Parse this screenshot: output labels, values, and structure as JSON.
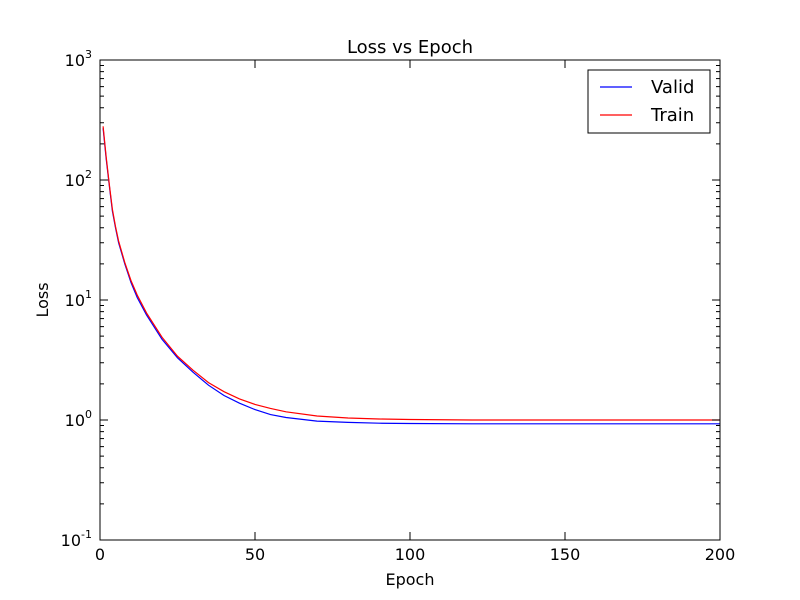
{
  "chart_data": {
    "type": "line",
    "title": "Loss vs Epoch",
    "xlabel": "Epoch",
    "ylabel": "Loss",
    "xlim": [
      0,
      200
    ],
    "ylim": [
      0.1,
      1000
    ],
    "yscale": "log",
    "x_ticks": [
      0,
      50,
      100,
      150,
      200
    ],
    "x_tick_labels": [
      "0",
      "50",
      "100",
      "150",
      "200"
    ],
    "y_ticks": [
      {
        "value": 0.1,
        "base": "10",
        "exp": "-1"
      },
      {
        "value": 1,
        "base": "10",
        "exp": "0"
      },
      {
        "value": 10,
        "base": "10",
        "exp": "1"
      },
      {
        "value": 100,
        "base": "10",
        "exp": "2"
      },
      {
        "value": 1000,
        "base": "10",
        "exp": "3"
      }
    ],
    "legend_position": "top-right",
    "series": [
      {
        "name": "Valid",
        "color": "#0000ff",
        "x": [
          1,
          2,
          3,
          4,
          5,
          6,
          8,
          10,
          12,
          15,
          20,
          25,
          30,
          35,
          40,
          45,
          50,
          55,
          60,
          70,
          80,
          90,
          100,
          120,
          150,
          175,
          200
        ],
        "y": [
          270,
          150,
          90,
          55,
          40,
          30,
          20,
          14,
          10.5,
          7.5,
          4.7,
          3.3,
          2.5,
          1.95,
          1.6,
          1.38,
          1.22,
          1.11,
          1.05,
          0.98,
          0.955,
          0.94,
          0.935,
          0.93,
          0.93,
          0.93,
          0.93
        ]
      },
      {
        "name": "Train",
        "color": "#ff0000",
        "x": [
          1,
          2,
          3,
          4,
          5,
          6,
          8,
          10,
          12,
          15,
          20,
          25,
          30,
          35,
          40,
          45,
          50,
          55,
          60,
          70,
          80,
          90,
          100,
          120,
          150,
          175,
          200
        ],
        "y": [
          280,
          155,
          92,
          57,
          41,
          31,
          20.5,
          14.5,
          11,
          7.8,
          4.9,
          3.4,
          2.6,
          2.05,
          1.72,
          1.5,
          1.35,
          1.25,
          1.17,
          1.08,
          1.04,
          1.02,
          1.01,
          1.0,
          1.0,
          1.0,
          1.0
        ]
      }
    ]
  }
}
